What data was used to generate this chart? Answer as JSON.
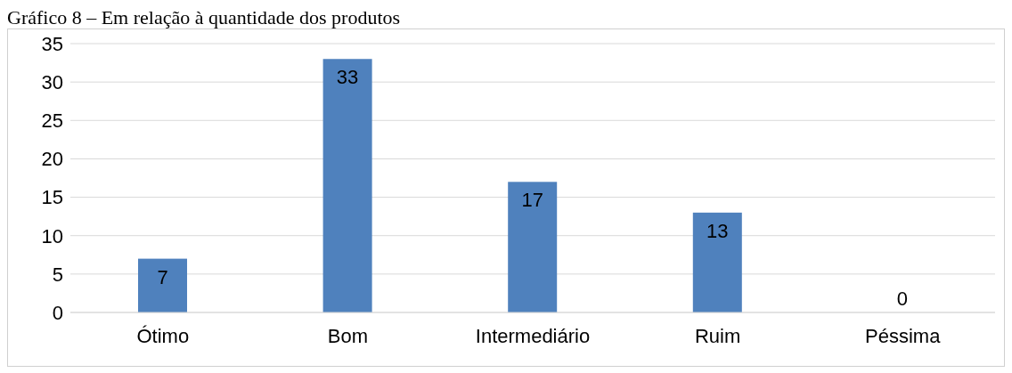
{
  "chart_data": {
    "type": "bar",
    "title": "Gráfico 8 – Em relação à quantidade dos produtos",
    "categories": [
      "Ótimo",
      "Bom",
      "Intermediário",
      "Ruim",
      "Péssima"
    ],
    "values": [
      7,
      33,
      17,
      13,
      0
    ],
    "color": "#4f81bd",
    "ylim": [
      0,
      35
    ],
    "yticks": [
      0,
      5,
      10,
      15,
      20,
      25,
      30,
      35
    ],
    "grid": "y",
    "data_labels": true
  }
}
